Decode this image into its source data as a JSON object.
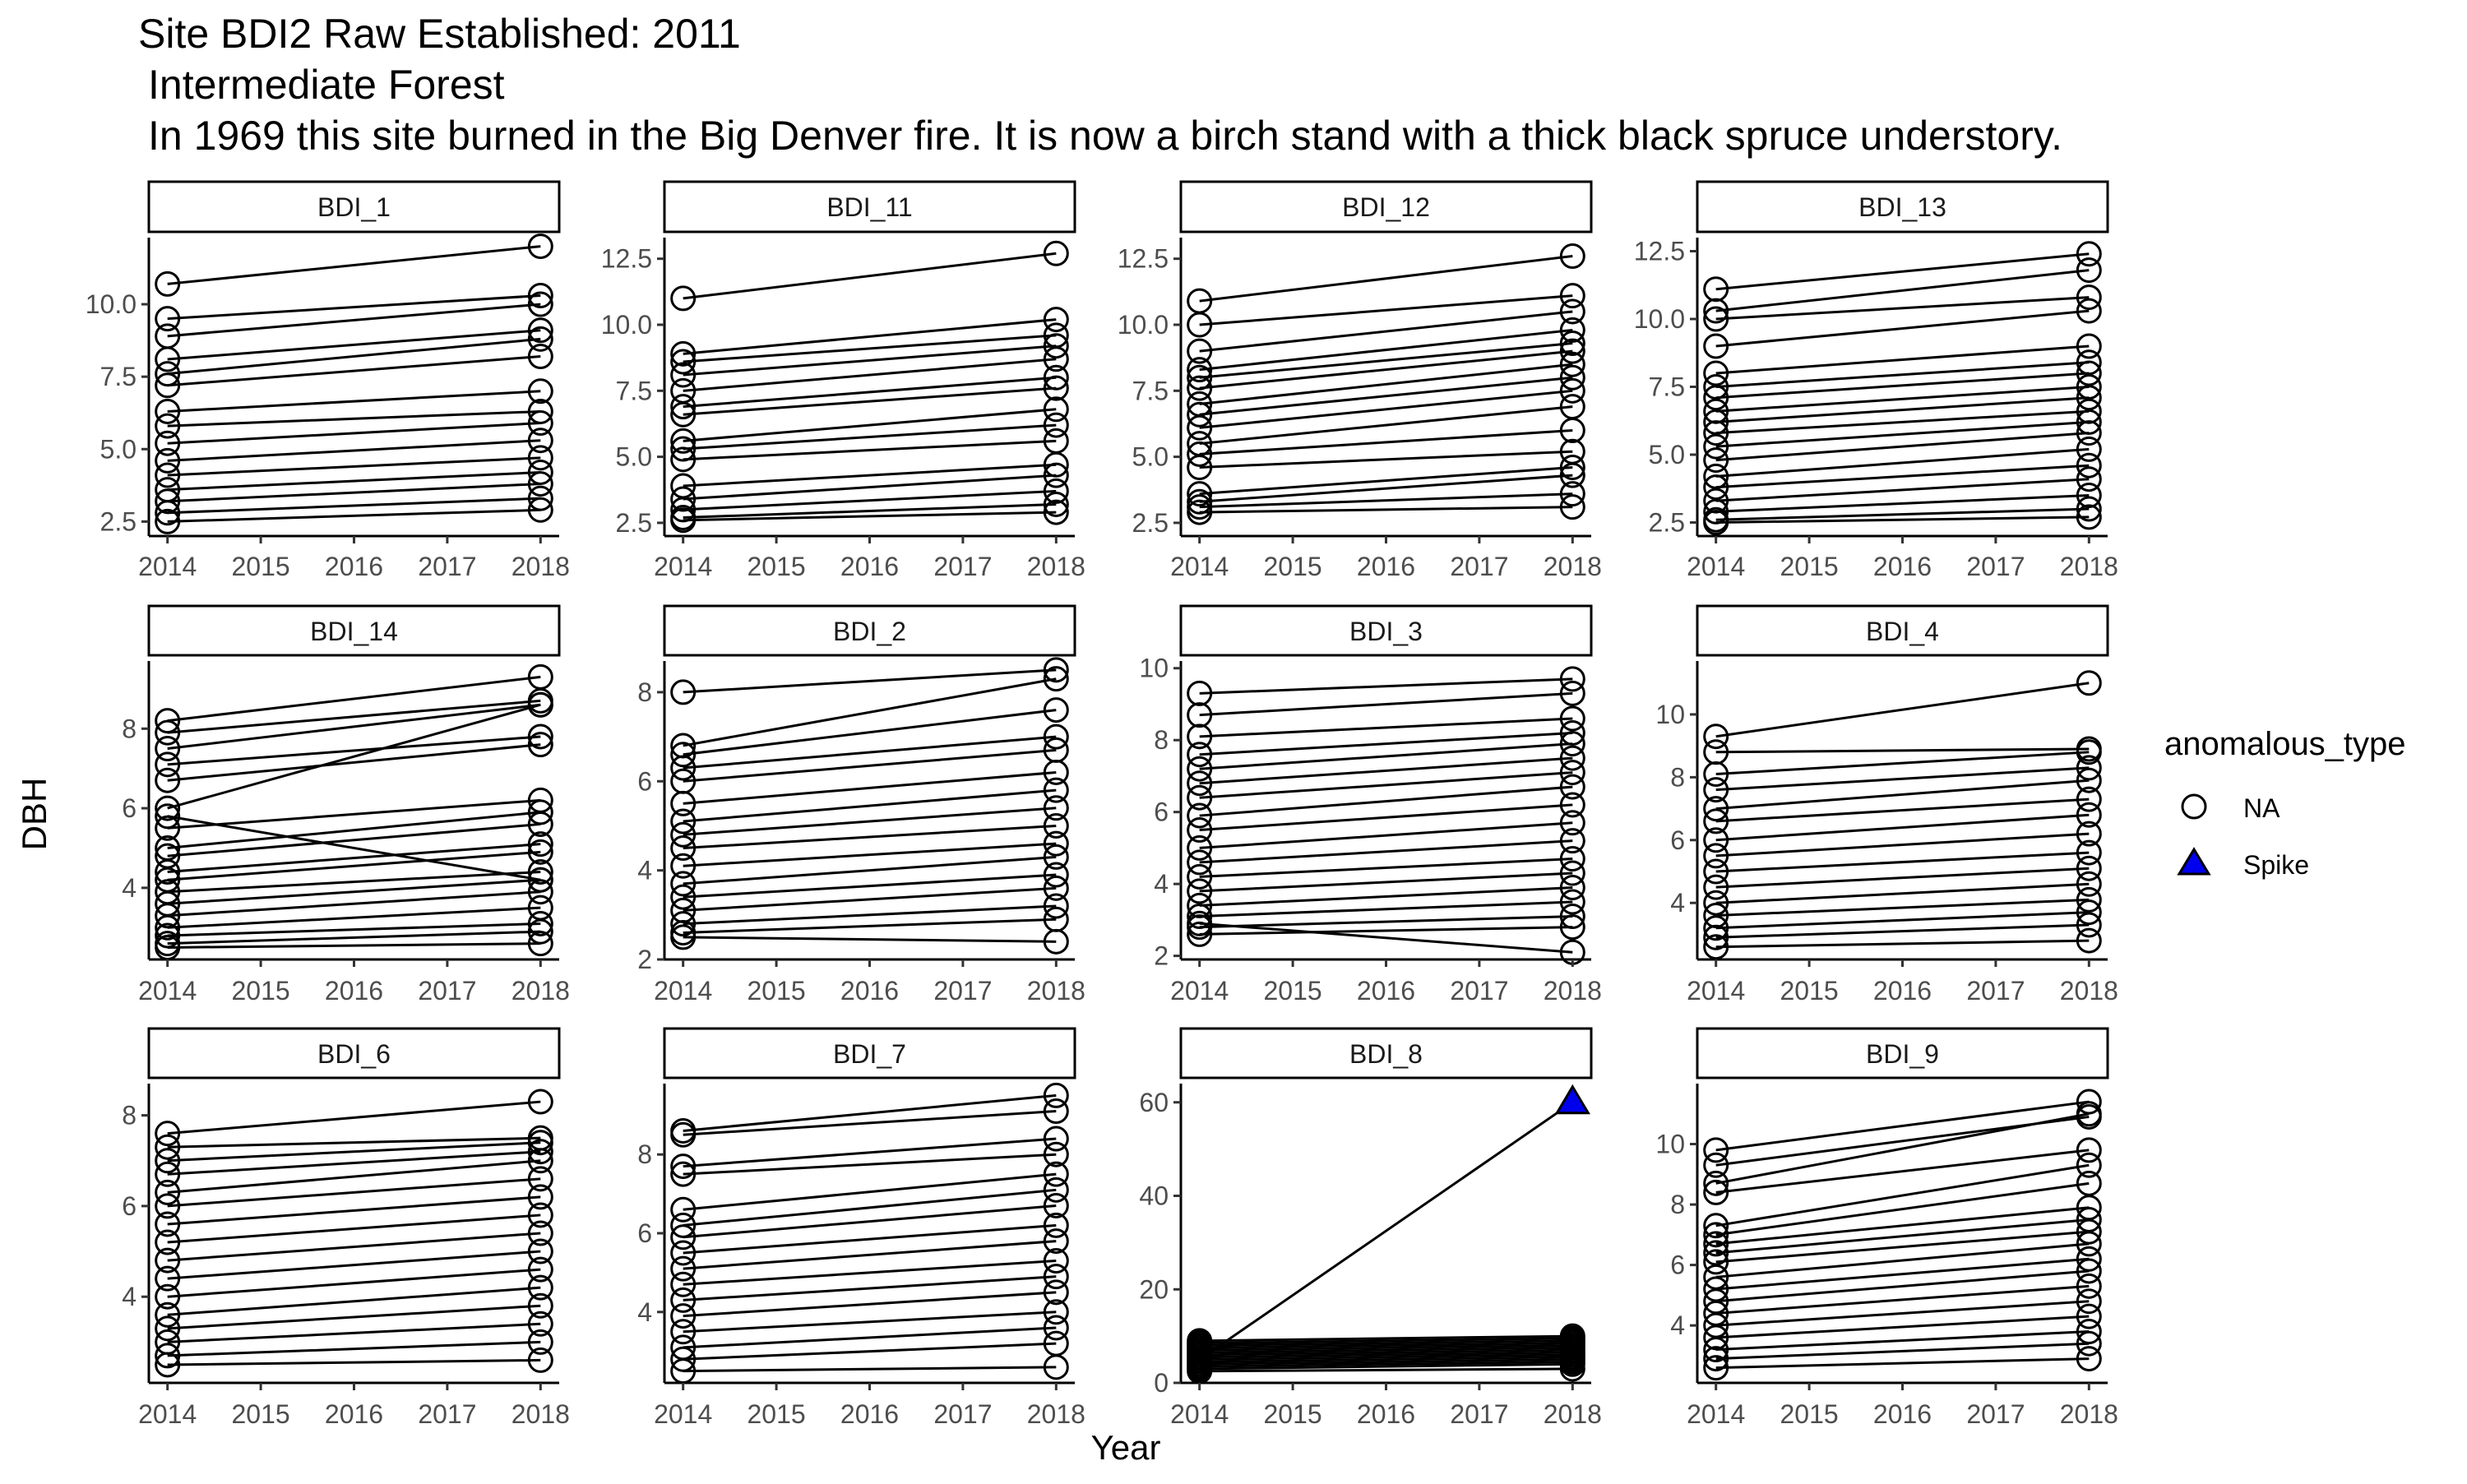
{
  "title": {
    "line1": "Site BDI2 Raw Established: 2011",
    "line2": "Intermediate Forest",
    "line3": "In 1969 this site burned in the Big Denver fire. It is now a birch stand with a thick black spruce understory."
  },
  "chart_data": {
    "type": "line",
    "xlabel": "Year",
    "ylabel": "DBH",
    "x_ticks": [
      2014,
      2015,
      2016,
      2017,
      2018
    ],
    "legend": {
      "title": "anomalous_type",
      "placement": "right",
      "entries": [
        {
          "label": "NA",
          "marker": "open-circle",
          "color": "#000000"
        },
        {
          "label": "Spike",
          "marker": "filled-triangle",
          "color": "#0000ee"
        }
      ]
    },
    "panels": [
      {
        "name": "BDI_1",
        "ylim": [
          2.0,
          12.3
        ],
        "yticks": [
          "2.5",
          "5.0",
          "7.5",
          "10.0"
        ],
        "trees": [
          [
            10.7,
            12.0
          ],
          [
            9.5,
            10.3
          ],
          [
            8.9,
            10.0
          ],
          [
            8.1,
            9.1
          ],
          [
            7.6,
            8.8
          ],
          [
            7.2,
            8.2
          ],
          [
            6.3,
            7.0
          ],
          [
            5.8,
            6.3
          ],
          [
            5.2,
            5.9
          ],
          [
            4.6,
            5.3
          ],
          [
            4.1,
            4.7
          ],
          [
            3.6,
            4.2
          ],
          [
            3.2,
            3.8
          ],
          [
            2.8,
            3.3
          ],
          [
            2.5,
            2.9
          ]
        ]
      },
      {
        "name": "BDI_11",
        "ylim": [
          2.0,
          13.3
        ],
        "yticks": [
          "2.5",
          "5.0",
          "7.5",
          "10.0",
          "12.5"
        ],
        "trees": [
          [
            11.0,
            12.7
          ],
          [
            8.9,
            10.2
          ],
          [
            8.6,
            9.6
          ],
          [
            8.1,
            9.2
          ],
          [
            7.5,
            8.7
          ],
          [
            6.9,
            8.0
          ],
          [
            6.6,
            7.6
          ],
          [
            5.6,
            6.8
          ],
          [
            5.3,
            6.2
          ],
          [
            4.9,
            5.6
          ],
          [
            3.9,
            4.7
          ],
          [
            3.4,
            4.3
          ],
          [
            3.0,
            3.7
          ],
          [
            2.7,
            3.2
          ],
          [
            2.6,
            2.9
          ]
        ]
      },
      {
        "name": "BDI_12",
        "ylim": [
          2.0,
          13.3
        ],
        "yticks": [
          "2.5",
          "5.0",
          "7.5",
          "10.0",
          "12.5"
        ],
        "trees": [
          [
            10.9,
            12.6
          ],
          [
            10.0,
            11.1
          ],
          [
            9.0,
            10.5
          ],
          [
            8.3,
            9.8
          ],
          [
            8.0,
            9.3
          ],
          [
            7.6,
            9.0
          ],
          [
            7.0,
            8.5
          ],
          [
            6.6,
            8.0
          ],
          [
            6.1,
            7.5
          ],
          [
            5.5,
            6.9
          ],
          [
            5.1,
            6.0
          ],
          [
            4.6,
            5.2
          ],
          [
            3.6,
            4.6
          ],
          [
            3.3,
            4.3
          ],
          [
            3.1,
            3.6
          ],
          [
            2.9,
            3.1
          ]
        ]
      },
      {
        "name": "BDI_13",
        "ylim": [
          2.0,
          13.0
        ],
        "yticks": [
          "2.5",
          "5.0",
          "7.5",
          "10.0",
          "12.5"
        ],
        "trees": [
          [
            11.1,
            12.4
          ],
          [
            10.3,
            11.8
          ],
          [
            10.0,
            10.8
          ],
          [
            9.0,
            10.3
          ],
          [
            8.0,
            9.0
          ],
          [
            7.5,
            8.4
          ],
          [
            7.1,
            8.0
          ],
          [
            6.6,
            7.5
          ],
          [
            6.2,
            7.1
          ],
          [
            5.8,
            6.6
          ],
          [
            5.3,
            6.2
          ],
          [
            4.8,
            5.8
          ],
          [
            4.2,
            5.2
          ],
          [
            3.8,
            4.6
          ],
          [
            3.3,
            4.1
          ],
          [
            2.9,
            3.5
          ],
          [
            2.6,
            3.0
          ],
          [
            2.5,
            2.7
          ]
        ]
      },
      {
        "name": "BDI_14",
        "ylim": [
          2.2,
          9.7
        ],
        "yticks": [
          "4",
          "6",
          "8"
        ],
        "trees": [
          [
            8.2,
            9.3
          ],
          [
            7.9,
            8.7
          ],
          [
            7.5,
            8.6
          ],
          [
            7.1,
            7.8
          ],
          [
            6.7,
            7.6
          ],
          [
            6.0,
            8.6
          ],
          [
            5.8,
            4.2
          ],
          [
            5.5,
            6.2
          ],
          [
            5.0,
            5.9
          ],
          [
            4.8,
            5.6
          ],
          [
            4.4,
            5.1
          ],
          [
            4.2,
            4.9
          ],
          [
            3.9,
            4.4
          ],
          [
            3.6,
            4.2
          ],
          [
            3.3,
            3.9
          ],
          [
            3.0,
            3.5
          ],
          [
            2.8,
            3.1
          ],
          [
            2.6,
            2.9
          ],
          [
            2.5,
            2.6
          ]
        ]
      },
      {
        "name": "BDI_2",
        "ylim": [
          2.0,
          8.7
        ],
        "yticks": [
          "2",
          "4",
          "6",
          "8"
        ],
        "trees": [
          [
            8.0,
            8.5
          ],
          [
            6.8,
            8.3
          ],
          [
            6.6,
            7.6
          ],
          [
            6.3,
            7.0
          ],
          [
            6.0,
            6.7
          ],
          [
            5.5,
            6.2
          ],
          [
            5.1,
            5.8
          ],
          [
            4.8,
            5.4
          ],
          [
            4.5,
            5.0
          ],
          [
            4.1,
            4.6
          ],
          [
            3.7,
            4.3
          ],
          [
            3.4,
            3.9
          ],
          [
            3.1,
            3.6
          ],
          [
            2.8,
            3.2
          ],
          [
            2.6,
            2.9
          ],
          [
            2.5,
            2.4
          ]
        ]
      },
      {
        "name": "BDI_3",
        "ylim": [
          1.9,
          10.2
        ],
        "yticks": [
          "2",
          "4",
          "6",
          "8",
          "10"
        ],
        "trees": [
          [
            9.3,
            9.7
          ],
          [
            8.7,
            9.3
          ],
          [
            8.1,
            8.6
          ],
          [
            7.6,
            8.2
          ],
          [
            7.2,
            7.9
          ],
          [
            6.8,
            7.5
          ],
          [
            6.4,
            7.1
          ],
          [
            5.9,
            6.7
          ],
          [
            5.5,
            6.2
          ],
          [
            5.0,
            5.7
          ],
          [
            4.6,
            5.2
          ],
          [
            4.2,
            4.7
          ],
          [
            3.8,
            4.3
          ],
          [
            3.4,
            3.9
          ],
          [
            3.1,
            3.5
          ],
          [
            2.8,
            3.1
          ],
          [
            2.6,
            2.8
          ],
          [
            2.9,
            2.1
          ]
        ]
      },
      {
        "name": "BDI_4",
        "ylim": [
          2.2,
          11.7
        ],
        "yticks": [
          "4",
          "6",
          "8",
          "10"
        ],
        "trees": [
          [
            9.3,
            11.0
          ],
          [
            8.8,
            8.9
          ],
          [
            8.1,
            8.8
          ],
          [
            7.6,
            8.3
          ],
          [
            7.0,
            7.9
          ],
          [
            6.6,
            7.3
          ],
          [
            6.0,
            6.8
          ],
          [
            5.5,
            6.2
          ],
          [
            5.0,
            5.6
          ],
          [
            4.5,
            5.1
          ],
          [
            4.0,
            4.6
          ],
          [
            3.6,
            4.1
          ],
          [
            3.2,
            3.7
          ],
          [
            2.9,
            3.3
          ],
          [
            2.6,
            2.8
          ]
        ]
      },
      {
        "name": "BDI_6",
        "ylim": [
          2.1,
          8.7
        ],
        "yticks": [
          "4",
          "6",
          "8"
        ],
        "trees": [
          [
            7.6,
            8.3
          ],
          [
            7.3,
            7.5
          ],
          [
            7.0,
            7.4
          ],
          [
            6.7,
            7.2
          ],
          [
            6.3,
            7.0
          ],
          [
            6.0,
            6.6
          ],
          [
            5.6,
            6.2
          ],
          [
            5.2,
            5.8
          ],
          [
            4.8,
            5.4
          ],
          [
            4.4,
            5.0
          ],
          [
            4.0,
            4.6
          ],
          [
            3.6,
            4.2
          ],
          [
            3.3,
            3.8
          ],
          [
            3.0,
            3.4
          ],
          [
            2.7,
            3.0
          ],
          [
            2.5,
            2.6
          ]
        ]
      },
      {
        "name": "BDI_7",
        "ylim": [
          2.2,
          9.8
        ],
        "yticks": [
          "4",
          "6",
          "8"
        ],
        "trees": [
          [
            8.6,
            9.5
          ],
          [
            8.5,
            9.1
          ],
          [
            7.7,
            8.4
          ],
          [
            7.5,
            8.0
          ],
          [
            6.6,
            7.5
          ],
          [
            6.2,
            7.1
          ],
          [
            5.9,
            6.7
          ],
          [
            5.5,
            6.2
          ],
          [
            5.1,
            5.8
          ],
          [
            4.7,
            5.3
          ],
          [
            4.3,
            4.9
          ],
          [
            3.9,
            4.5
          ],
          [
            3.5,
            4.0
          ],
          [
            3.1,
            3.6
          ],
          [
            2.8,
            3.2
          ],
          [
            2.5,
            2.6
          ]
        ]
      },
      {
        "name": "BDI_8",
        "ylim": [
          0.0,
          64.0
        ],
        "yticks": [
          "0",
          "20",
          "40",
          "60"
        ],
        "trees": [
          [
            9.0,
            10.0
          ],
          [
            8.5,
            9.5
          ],
          [
            8.0,
            9.0
          ],
          [
            7.5,
            8.5
          ],
          [
            7.0,
            8.0
          ],
          [
            6.5,
            7.5
          ],
          [
            6.0,
            7.0
          ],
          [
            5.5,
            6.5
          ],
          [
            5.0,
            6.0
          ],
          [
            4.5,
            5.5
          ],
          [
            4.0,
            5.0
          ],
          [
            3.5,
            4.5
          ],
          [
            3.0,
            4.0
          ],
          [
            2.5,
            3.0
          ]
        ],
        "spike": {
          "from": 5.0,
          "to": 60.0,
          "label": "Spike"
        }
      },
      {
        "name": "BDI_9",
        "ylim": [
          2.1,
          12.0
        ],
        "yticks": [
          "4",
          "6",
          "8",
          "10"
        ],
        "trees": [
          [
            9.8,
            11.4
          ],
          [
            9.3,
            10.9
          ],
          [
            8.7,
            11.0
          ],
          [
            8.4,
            9.8
          ],
          [
            7.3,
            9.3
          ],
          [
            7.0,
            8.7
          ],
          [
            6.7,
            7.9
          ],
          [
            6.4,
            7.5
          ],
          [
            6.1,
            7.1
          ],
          [
            5.6,
            6.7
          ],
          [
            5.2,
            6.2
          ],
          [
            4.8,
            5.8
          ],
          [
            4.4,
            5.3
          ],
          [
            4.0,
            4.8
          ],
          [
            3.6,
            4.3
          ],
          [
            3.2,
            3.8
          ],
          [
            2.9,
            3.4
          ],
          [
            2.6,
            2.9
          ]
        ]
      }
    ]
  }
}
